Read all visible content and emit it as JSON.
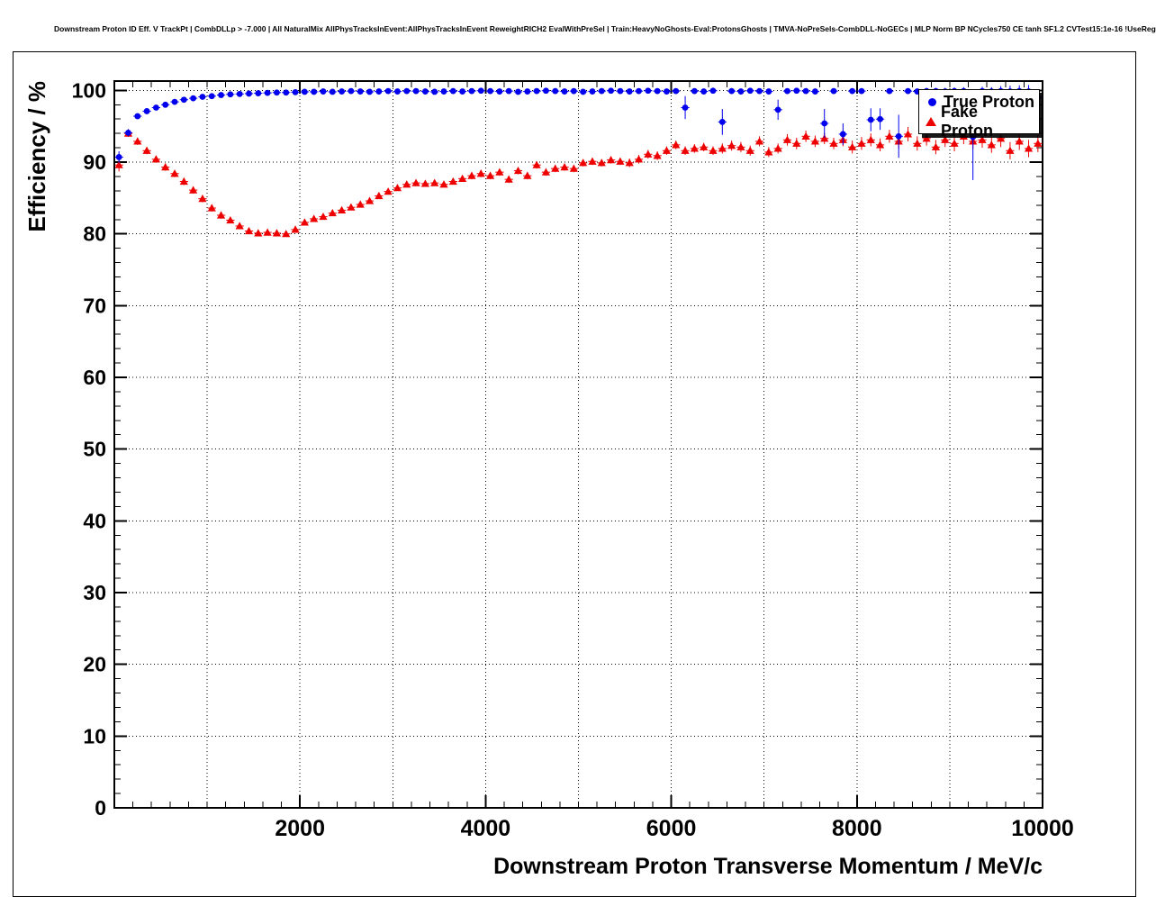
{
  "header": {
    "title": "Downstream Proton ID Eff. V TrackPt | CombDLLp > -7.000 | All NaturalMix AllPhysTracksInEvent:AllPhysTracksInEvent ReweightRICH2 EvalWithPreSel | Train:HeavyNoGhosts-Eval:ProtonsGhosts | TMVA-NoPreSels-CombDLL-NoGECs | MLP Norm BP NCycles750 CE tanh SF1.2 CVTest15:1e-16 !UseReg"
  },
  "legend": {
    "entries": [
      {
        "label": "True Proton",
        "marker": "circle",
        "color": "#0000ee"
      },
      {
        "label": "Fake Proton",
        "marker": "triangle",
        "color": "#ee0000"
      }
    ]
  },
  "colors": {
    "true_proton": "#0000ee",
    "fake_proton": "#ee0000",
    "axis": "#000000",
    "background": "#ffffff"
  },
  "chart_data": {
    "type": "scatter",
    "title": "Downstream Proton ID Eff. V TrackPt | CombDLLp > -7.000 | All NaturalMix AllPhysTracksInEvent:AllPhysTracksInEvent ReweightRICH2 EvalWithPreSel | Train:HeavyNoGhosts-Eval:ProtonsGhosts | TMVA-NoPreSels-CombDLL-NoGECs | MLP Norm BP NCycles750 CE tanh SF1.2 CVTest15:1e-16 !UseReg",
    "xlabel": "Downstream Proton Transverse Momentum / MeV/c",
    "ylabel": "Efficiency / %",
    "xlim": [
      0,
      10000
    ],
    "ylim": [
      0,
      101.3
    ],
    "x_ticks": [
      2000,
      4000,
      6000,
      8000,
      10000
    ],
    "y_ticks": [
      0,
      10,
      20,
      30,
      40,
      50,
      60,
      70,
      80,
      90,
      100
    ],
    "grid": true,
    "legend_position": "top-right",
    "x_start": 50,
    "x_step": 100,
    "x_halfbin": 45,
    "series": [
      {
        "name": "True Proton",
        "marker": "circle",
        "color": "#0000ee",
        "y": [
          90.7,
          94.1,
          96.4,
          97.1,
          97.6,
          98.0,
          98.4,
          98.7,
          98.9,
          99.1,
          99.2,
          99.35,
          99.45,
          99.5,
          99.55,
          99.6,
          99.65,
          99.7,
          99.7,
          99.75,
          99.8,
          99.8,
          99.85,
          99.8,
          99.85,
          99.9,
          99.85,
          99.8,
          99.85,
          99.9,
          99.85,
          99.9,
          99.9,
          99.85,
          99.8,
          99.85,
          99.9,
          99.85,
          99.9,
          99.95,
          99.9,
          99.85,
          99.9,
          99.8,
          99.85,
          99.9,
          99.95,
          99.9,
          99.85,
          99.9,
          99.8,
          99.85,
          99.9,
          99.95,
          99.9,
          99.85,
          99.9,
          99.95,
          99.9,
          99.85,
          99.9,
          97.6,
          99.9,
          99.85,
          99.95,
          95.6,
          99.9,
          99.85,
          99.95,
          99.9,
          99.85,
          97.3,
          99.9,
          99.95,
          99.9,
          99.85,
          95.4,
          99.9,
          93.9,
          99.9,
          99.9,
          95.9,
          96.0,
          99.9,
          93.6,
          99.9,
          99.85,
          99.9,
          99.9,
          99.85,
          99.9,
          99.9,
          93.5,
          99.9,
          99.85,
          99.9,
          99.85,
          99.9,
          99.85,
          99.0
        ],
        "yerr": [
          0.8,
          0.5,
          0.4,
          0.3,
          0.3,
          0.25,
          0.2,
          0.2,
          0.15,
          0.15,
          0.12,
          0.1,
          0.1,
          0.1,
          0.1,
          0.1,
          0.1,
          0.1,
          0.1,
          0.1,
          0.1,
          0.1,
          0.1,
          0.1,
          0.1,
          0.1,
          0.1,
          0.1,
          0.1,
          0.1,
          0.1,
          0.1,
          0.1,
          0.1,
          0.1,
          0.1,
          0.1,
          0.1,
          0.1,
          0.1,
          0.1,
          0.1,
          0.1,
          0.1,
          0.1,
          0.1,
          0.1,
          0.1,
          0.1,
          0.1,
          0.12,
          0.12,
          0.12,
          0.12,
          0.12,
          0.12,
          0.15,
          0.15,
          0.15,
          0.15,
          0.15,
          1.6,
          0.15,
          0.2,
          0.2,
          1.8,
          0.2,
          0.2,
          0.2,
          0.2,
          0.25,
          1.4,
          0.25,
          0.25,
          0.3,
          0.3,
          2.0,
          0.3,
          1.5,
          0.35,
          0.35,
          1.6,
          1.5,
          0.4,
          3.0,
          0.4,
          0.4,
          0.45,
          0.45,
          0.5,
          0.5,
          0.55,
          6.0,
          0.6,
          0.6,
          0.7,
          0.8,
          0.8,
          0.9,
          1.0
        ]
      },
      {
        "name": "Fake Proton",
        "marker": "triangle",
        "color": "#ee0000",
        "y": [
          89.6,
          94.0,
          92.9,
          91.6,
          90.4,
          89.3,
          88.4,
          87.3,
          86.1,
          84.9,
          83.6,
          82.6,
          81.9,
          81.1,
          80.4,
          80.1,
          80.2,
          80.1,
          80.0,
          80.6,
          81.6,
          82.1,
          82.4,
          82.9,
          83.3,
          83.7,
          84.1,
          84.6,
          85.3,
          85.9,
          86.4,
          86.9,
          87.1,
          87.0,
          87.1,
          86.9,
          87.3,
          87.7,
          88.1,
          88.4,
          88.1,
          88.6,
          87.6,
          88.8,
          88.1,
          89.6,
          88.6,
          89.1,
          89.3,
          89.1,
          89.9,
          90.1,
          89.9,
          90.3,
          90.1,
          89.9,
          90.4,
          91.1,
          90.9,
          91.6,
          92.4,
          91.6,
          91.9,
          92.1,
          91.6,
          91.9,
          92.3,
          92.1,
          91.6,
          92.9,
          91.4,
          91.9,
          93.1,
          92.6,
          93.6,
          92.9,
          93.3,
          92.6,
          93.1,
          92.1,
          92.6,
          93.1,
          92.4,
          93.6,
          92.9,
          93.9,
          92.6,
          93.3,
          92.1,
          93.1,
          92.6,
          93.6,
          92.9,
          93.1,
          92.4,
          93.3,
          91.6,
          92.9,
          91.9,
          92.6
        ],
        "yerr": [
          0.9,
          0.5,
          0.5,
          0.5,
          0.5,
          0.5,
          0.5,
          0.5,
          0.5,
          0.5,
          0.5,
          0.5,
          0.4,
          0.4,
          0.4,
          0.4,
          0.4,
          0.4,
          0.4,
          0.4,
          0.4,
          0.4,
          0.4,
          0.4,
          0.4,
          0.4,
          0.4,
          0.4,
          0.4,
          0.4,
          0.4,
          0.4,
          0.4,
          0.4,
          0.4,
          0.4,
          0.4,
          0.4,
          0.5,
          0.5,
          0.5,
          0.5,
          0.5,
          0.5,
          0.5,
          0.5,
          0.5,
          0.5,
          0.5,
          0.5,
          0.5,
          0.5,
          0.5,
          0.5,
          0.5,
          0.6,
          0.6,
          0.6,
          0.6,
          0.6,
          0.6,
          0.6,
          0.6,
          0.6,
          0.6,
          0.7,
          0.7,
          0.7,
          0.7,
          0.7,
          0.7,
          0.7,
          0.8,
          0.8,
          0.8,
          0.8,
          0.8,
          0.8,
          0.9,
          0.9,
          0.9,
          0.9,
          0.9,
          0.9,
          1.0,
          1.0,
          1.0,
          1.0,
          1.0,
          1.0,
          1.1,
          1.1,
          1.1,
          1.1,
          1.1,
          1.2,
          1.2,
          1.2,
          1.2,
          1.2
        ]
      }
    ]
  }
}
